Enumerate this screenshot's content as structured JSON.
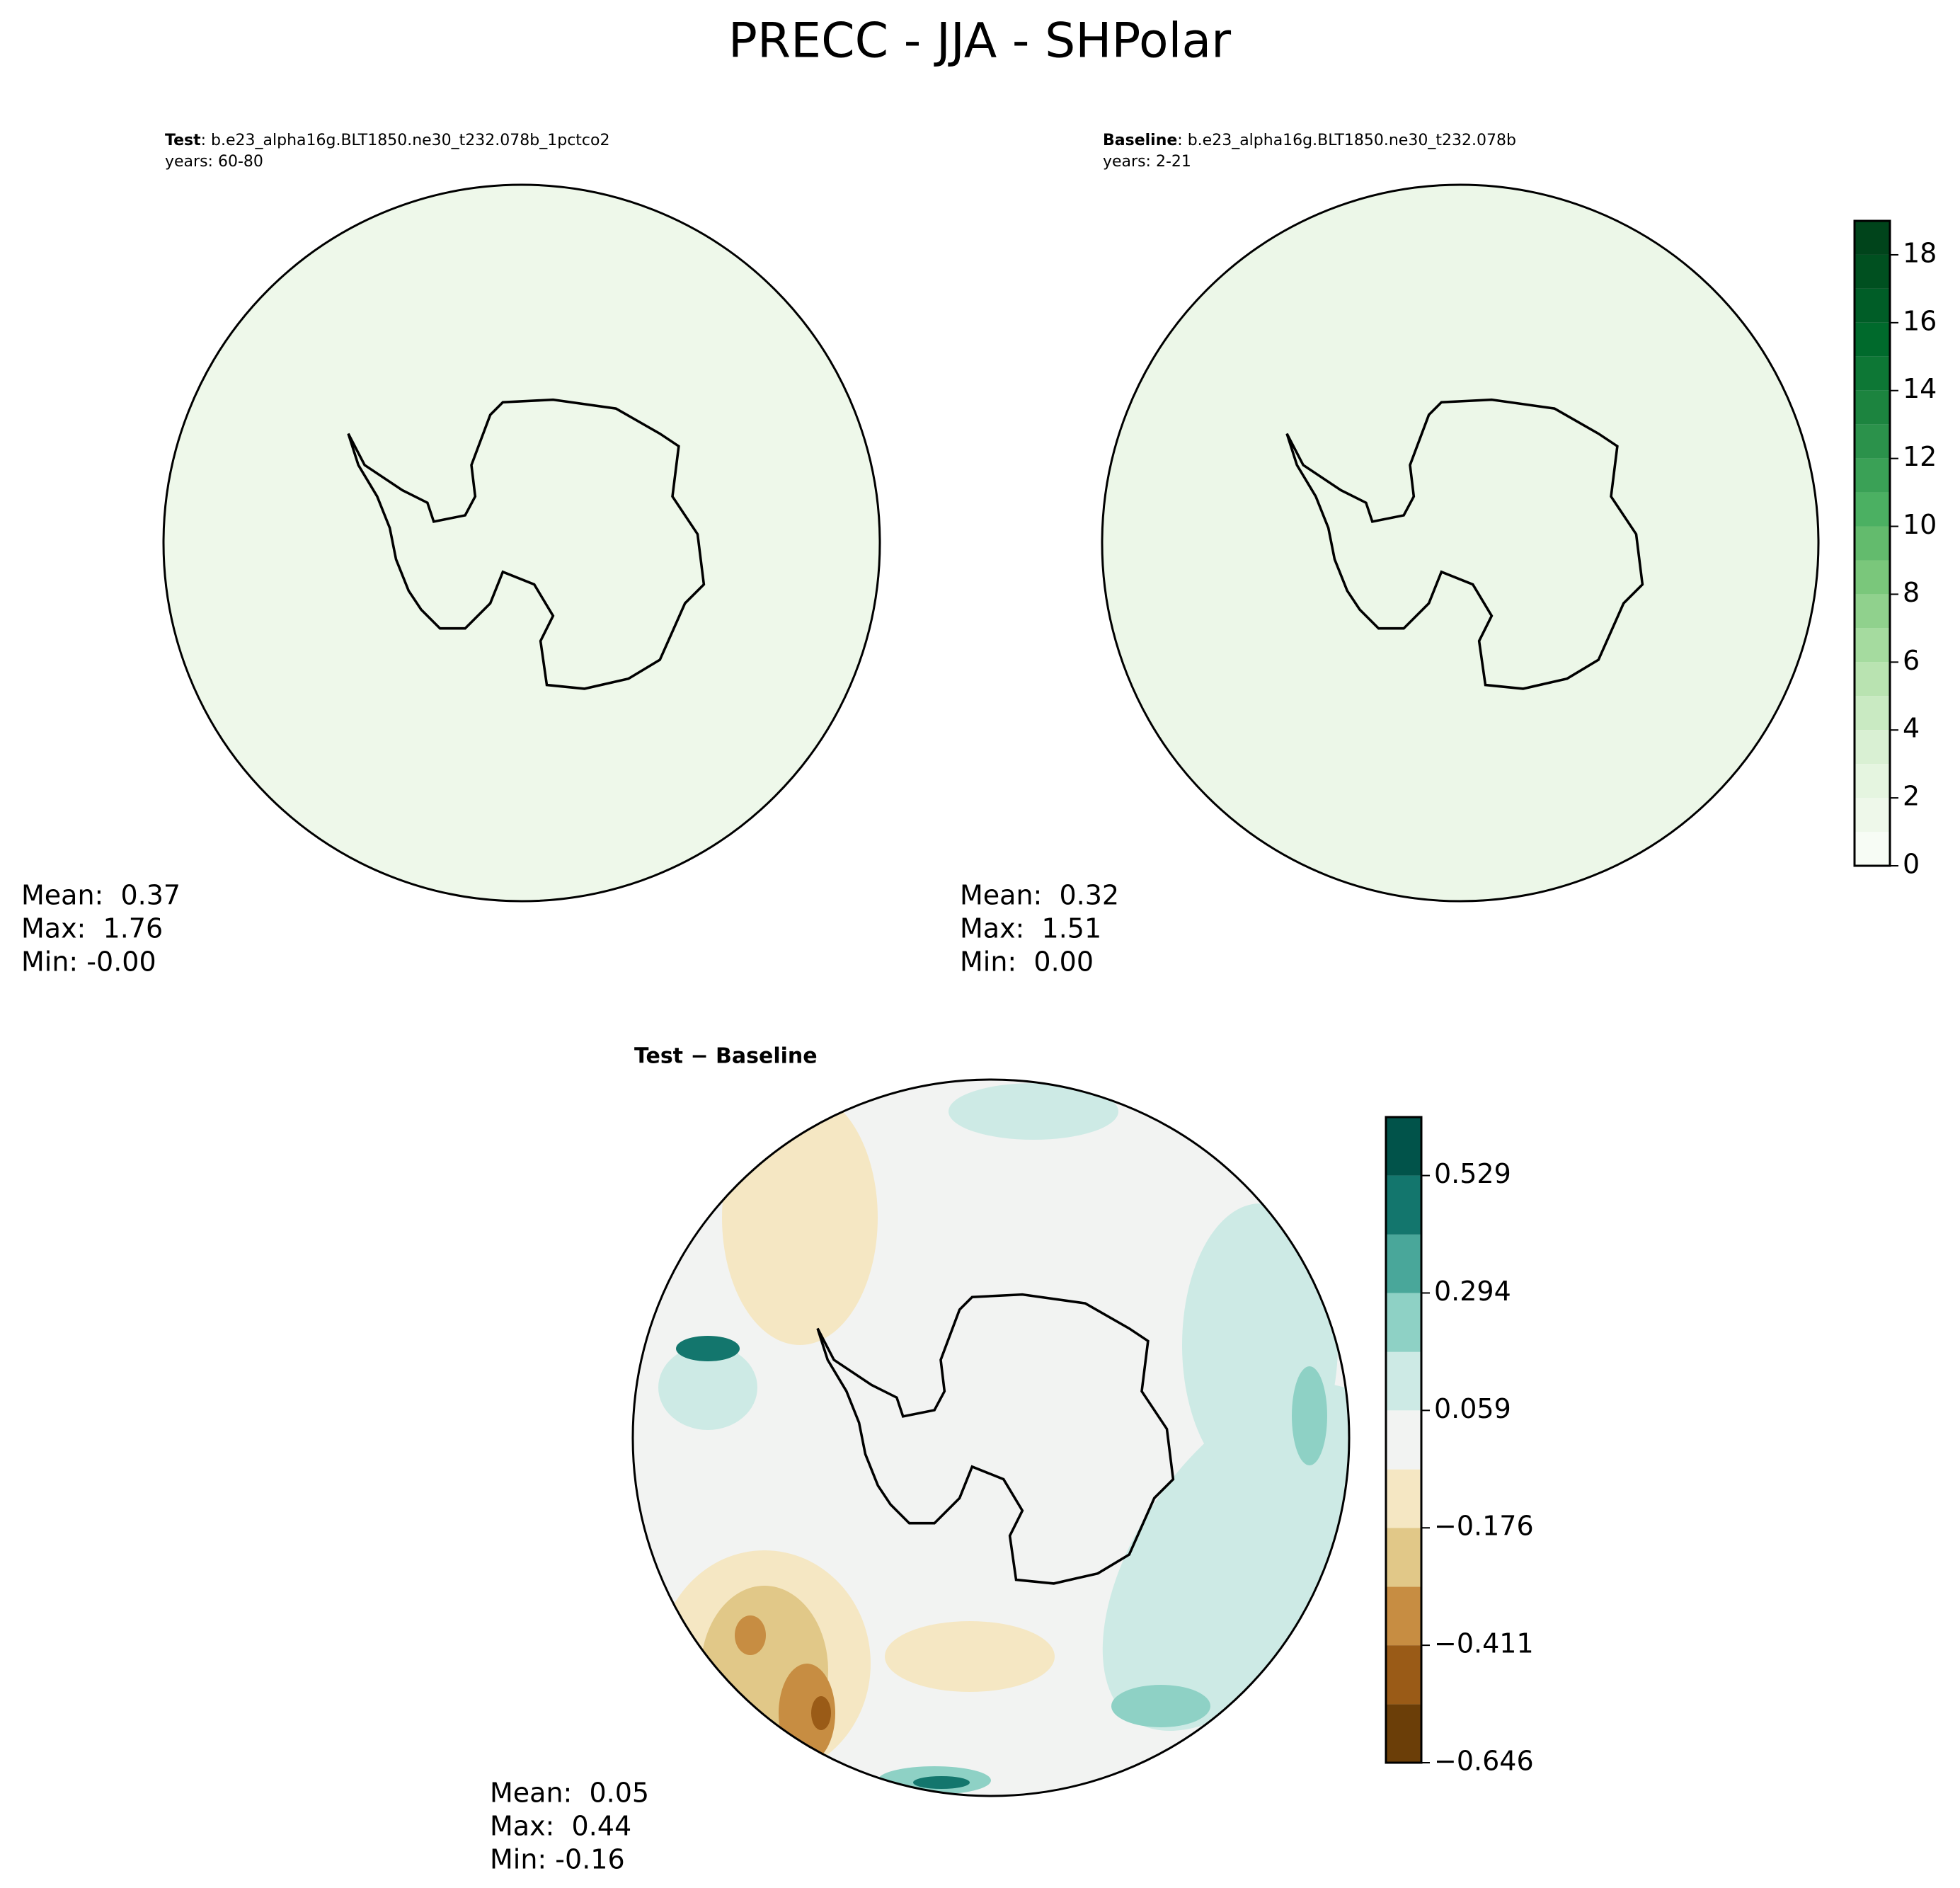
{
  "title": "PRECC - JJA - SHPolar",
  "chart_data": [
    {
      "type": "map",
      "name": "Test",
      "subtitle": ": b.e23_alpha16g.BLT1850.ne30_t232.078b_1pctco2",
      "years": "years: 60-80",
      "stats": [
        "Mean:  0.37",
        "Max:  1.76",
        "Min: -0.00"
      ],
      "color": "#eef8ea"
    },
    {
      "type": "map",
      "name": "Baseline",
      "subtitle": ": b.e23_alpha16g.BLT1850.ne30_t232.078b",
      "years": "years: 2-21",
      "stats": [
        "Mean:  0.32",
        "Max:  1.51",
        "Min:  0.00"
      ],
      "color": "#ecf7e8",
      "colorbar": {
        "ylim": [
          0,
          19
        ],
        "yticks": [
          0,
          2,
          4,
          6,
          8,
          10,
          12,
          14,
          16,
          18
        ],
        "levels": [
          0,
          1,
          2,
          3,
          4,
          5,
          6,
          7,
          8,
          9,
          10,
          11,
          12,
          13,
          14,
          15,
          16,
          17,
          18,
          19
        ],
        "colors": [
          "#f7fcf5",
          "#eef8ea",
          "#e5f5e0",
          "#d9f0d3",
          "#c9eac2",
          "#b9e3b1",
          "#a5db9f",
          "#90d18d",
          "#7ac77b",
          "#63bb6d",
          "#4bb062",
          "#3aa156",
          "#2b924b",
          "#1c843f",
          "#0d7735",
          "#006a2c",
          "#005d27",
          "#005020",
          "#00441b"
        ]
      }
    },
    {
      "type": "map",
      "name": "Test − Baseline",
      "stats": [
        "Mean:  0.05",
        "Max:  0.44",
        "Min: -0.16"
      ],
      "color": "#f2f3f2",
      "colorbar": {
        "ylim": [
          -0.646,
          0.646
        ],
        "yticks": [
          {
            "value": -0.646,
            "label": "−0.646"
          },
          {
            "value": -0.411,
            "label": "−0.411"
          },
          {
            "value": -0.176,
            "label": "−0.176"
          },
          0.059,
          0.294,
          0.529
        ],
        "levels": [
          -0.646,
          -0.529,
          -0.411,
          -0.294,
          -0.176,
          -0.059,
          0.059,
          0.176,
          0.294,
          0.411,
          0.529,
          0.646
        ],
        "colors": [
          "#6b3e08",
          "#9a5b17",
          "#c78d42",
          "#e1c888",
          "#f5e7c3",
          "#f2f3f2",
          "#cdeae5",
          "#8ed1c5",
          "#49a79a",
          "#13766d",
          "#01534a"
        ]
      }
    }
  ]
}
